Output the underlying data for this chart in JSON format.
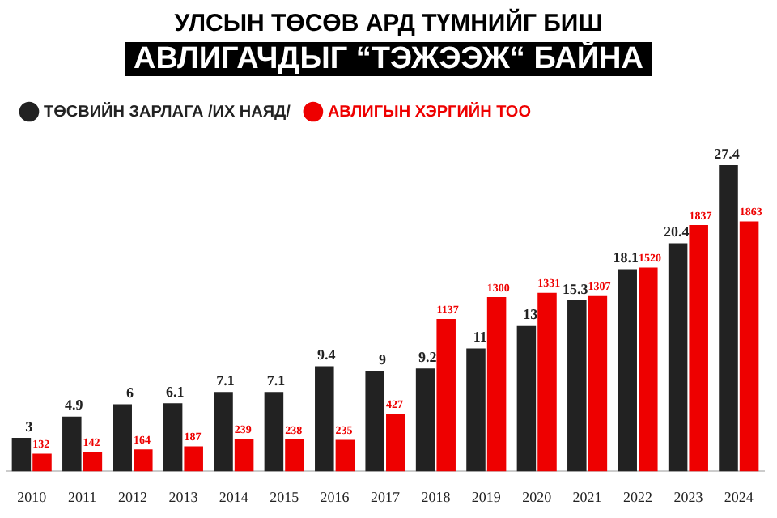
{
  "chart_data": {
    "type": "bar",
    "title": "УЛСЫН ТӨСӨВ АРД ТҮМНИЙГ БИШ",
    "subtitle": "АВЛИГАЧДЫГ “ТЭЖЭЭЖ“ БАЙНА",
    "categories": [
      "2010",
      "2011",
      "2012",
      "2013",
      "2014",
      "2015",
      "2016",
      "2017",
      "2018",
      "2019",
      "2020",
      "2021",
      "2022",
      "2023",
      "2024"
    ],
    "series": [
      {
        "name": "ТӨСВИЙН ЗАРЛАГА /ИХ НАЯД/",
        "color": "#222222",
        "values": [
          3,
          4.9,
          6,
          6.1,
          7.1,
          7.1,
          9.4,
          9,
          9.2,
          11,
          13,
          15.3,
          18.1,
          20.4,
          27.4
        ]
      },
      {
        "name": "АВЛИГЫН ХЭРГИЙН ТОО",
        "color": "#ee0000",
        "axis": "y2",
        "values": [
          132,
          142,
          164,
          187,
          239,
          238,
          235,
          427,
          1137,
          1300,
          1331,
          1307,
          1520,
          1837,
          1863
        ]
      }
    ],
    "tick_labels": "x",
    "data_labels": true,
    "legend": "top left",
    "marker": "circle"
  }
}
